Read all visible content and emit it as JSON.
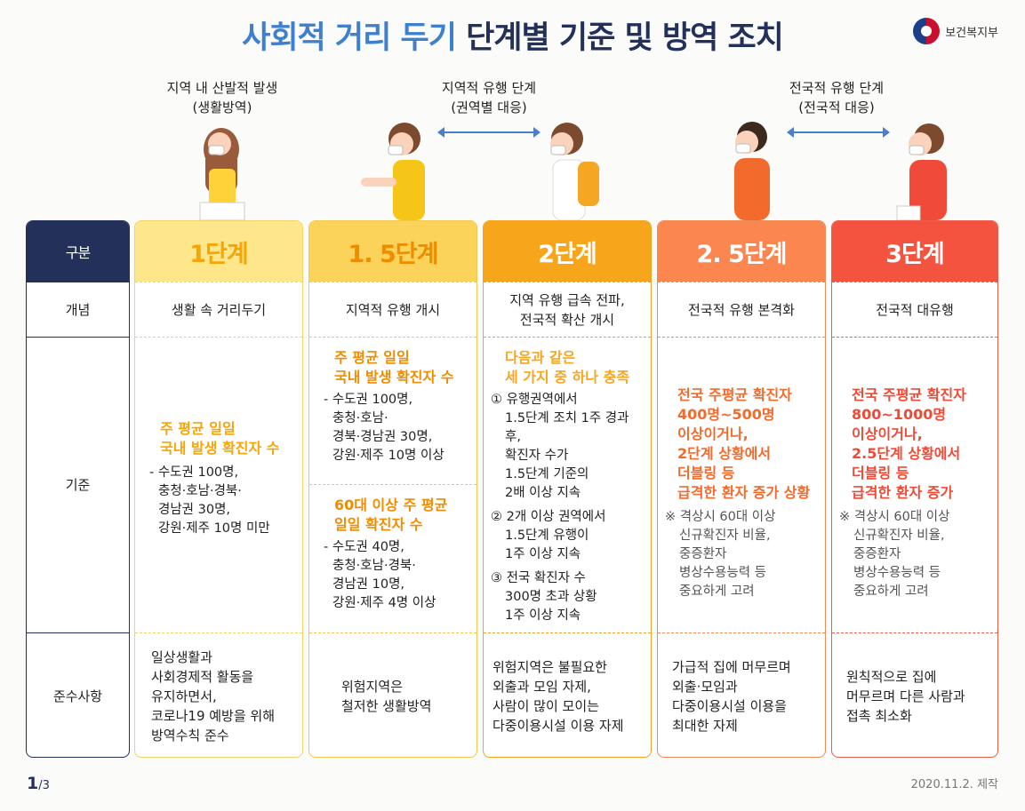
{
  "title": {
    "part1": "사회적 거리 두기",
    "part2": "단계별 기준 및 방역 조치"
  },
  "logo": {
    "text": "보건복지부"
  },
  "phases": [
    {
      "line1": "지역 내 산발적 발생",
      "line2": "(생활방역)"
    },
    {
      "line1": "지역적 유행 단계",
      "line2": "(권역별 대응)"
    },
    {
      "line1": "전국적 유행 단계",
      "line2": "(전국적 대응)"
    }
  ],
  "labels": {
    "head": "구분",
    "concept": "개념",
    "criteria": "기준",
    "compliance": "준수사항"
  },
  "stages": [
    {
      "name": "1단계",
      "color": "#f5a50a",
      "bg": "#fde78a",
      "border": "#f4d169",
      "concept": "생활 속 거리두기",
      "criteria": {
        "hl1": "주 평균 일일",
        "hl2": "국내 발생 확진자 수",
        "lines": [
          "- 수도권 100명,",
          "충청·호남·경북·",
          "경남권 30명,",
          "강원·제주 10명 미만"
        ]
      },
      "compliance": [
        "일상생활과",
        "사회경제적 활동을",
        "유지하면서,",
        "코로나19 예방을 위해",
        "방역수칙 준수"
      ]
    },
    {
      "name": "1. 5단계",
      "color": "#f08c00",
      "bg": "#fcd35a",
      "border": "#f4c750",
      "concept": "지역적 유행 개시",
      "criteria": {
        "a": {
          "hl1": "주 평균 일일",
          "hl2": "국내 발생 확진자 수",
          "lines": [
            "- 수도권 100명,",
            "충청·호남·",
            "경북·경남권 30명,",
            "강원·제주 10명 이상"
          ]
        },
        "b": {
          "hl1": "60대 이상 주 평균",
          "hl2": "일일 확진자 수",
          "lines": [
            "- 수도권 40명,",
            "충청·호남·경북·",
            "경남권 10명,",
            "강원·제주 4명 이상"
          ]
        }
      },
      "compliance": [
        "위험지역은",
        "철저한 생활방역"
      ]
    },
    {
      "name": "2단계",
      "color": "#ffffff",
      "bg": "#f7a61c",
      "border": "#f2a324",
      "concept": [
        "지역 유행 급속 전파,",
        "전국적 확산 개시"
      ],
      "criteria": {
        "hl1": "다음과 같은",
        "hl2": "세 가지 중 하나 충족",
        "items": [
          [
            "① 유행권역에서",
            "1.5단계 조치 1주 경과 후,",
            "확진자 수가",
            "1.5단계 기준의",
            "2배 이상 지속"
          ],
          [
            "② 2개 이상 권역에서",
            "1.5단계 유행이",
            "1주 이상 지속"
          ],
          [
            "③ 전국 확진자 수",
            "300명 초과 상황",
            "1주 이상 지속"
          ]
        ]
      },
      "compliance": [
        "위험지역은 불필요한",
        "외출과 모임 자제,",
        "사람이 많이 모이는",
        "다중이용시설 이용 자제"
      ]
    },
    {
      "name": "2. 5단계",
      "color": "#ffffff",
      "bg": "#fb8650",
      "border": "#f58a59",
      "concept": "전국적 유행 본격화",
      "criteria": {
        "hl": [
          "전국 주평균 확진자",
          "400명~500명",
          "이상이거나,",
          "2단계 상황에서",
          "더블링 등",
          "급격한 환자 증가 상황"
        ],
        "note": [
          "※ 격상시 60대 이상",
          "신규확진자 비율,",
          "중증환자",
          "병상수용능력 등",
          "중요하게 고려"
        ]
      },
      "compliance": [
        "가급적 집에 머무르며",
        "외출·모임과",
        "다중이용시설 이용을",
        "최대한 자제"
      ]
    },
    {
      "name": "3단계",
      "color": "#ffffff",
      "bg": "#f3533f",
      "border": "#ee5b4a",
      "concept": "전국적 대유행",
      "criteria": {
        "hl": [
          "전국 주평균 확진자",
          "800~1000명",
          "이상이거나,",
          "2.5단계 상황에서",
          "더블링 등",
          "급격한 환자 증가"
        ],
        "note": [
          "※ 격상시 60대 이상",
          "신규확진자 비율,",
          "중증환자",
          "병상수용능력 등",
          "중요하게 고려"
        ]
      },
      "compliance": [
        "원칙적으로 집에",
        "머무르며 다른 사람과",
        "접촉 최소화"
      ]
    }
  ],
  "footer": {
    "page": "1",
    "total": "/3",
    "date": "2020.11.2. 제작"
  }
}
